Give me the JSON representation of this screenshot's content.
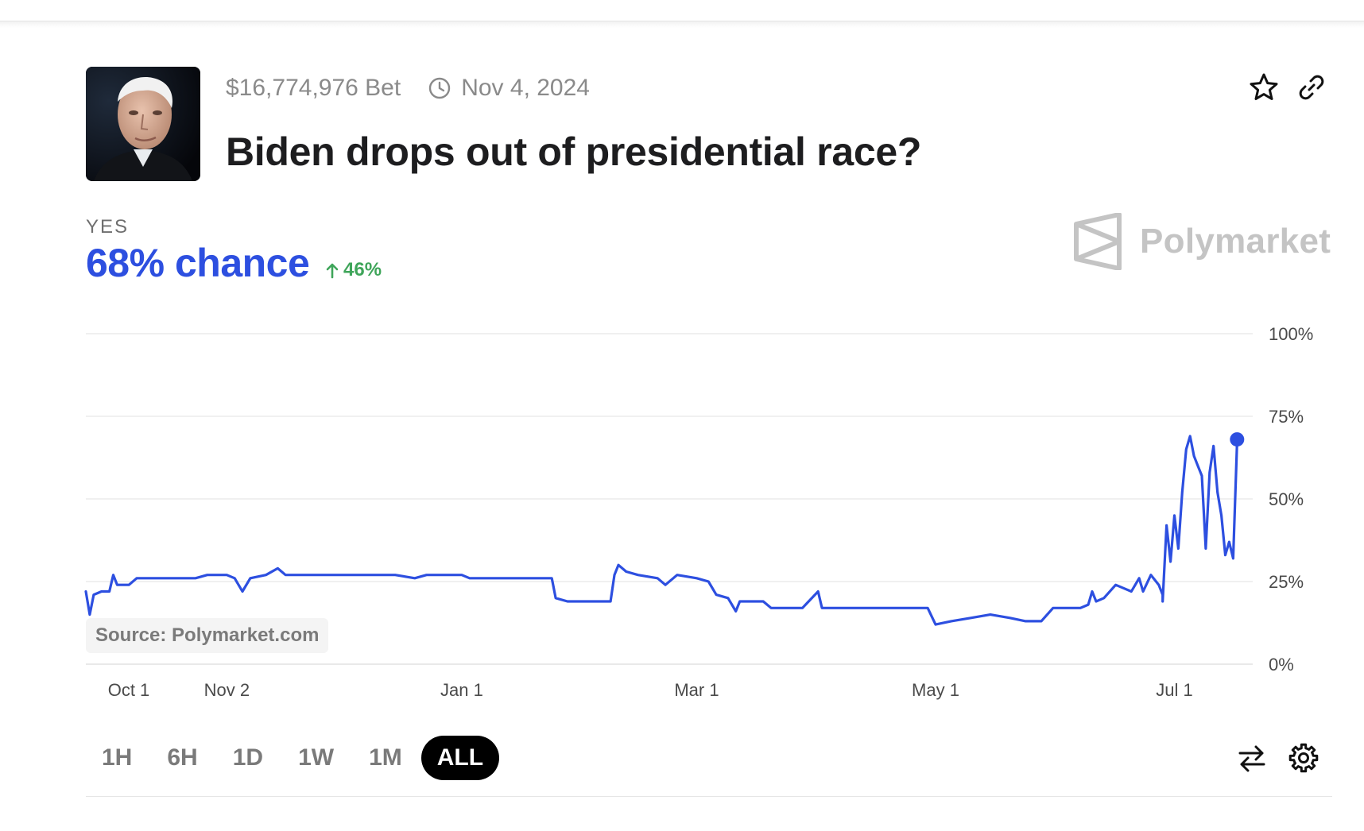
{
  "market": {
    "volume": "$16,774,976 Bet",
    "end_date": "Nov 4, 2024",
    "title": "Biden drops out of presidential race?"
  },
  "outcome": {
    "label": "YES",
    "chance": "68% chance",
    "change": "46%"
  },
  "brand": {
    "name": "Polymarket"
  },
  "source": "Source: Polymarket.com",
  "ranges": [
    "1H",
    "6H",
    "1D",
    "1W",
    "1M",
    "ALL"
  ],
  "active_range": "ALL",
  "icons": {
    "favorite": "star-icon",
    "share": "link-icon",
    "end_date": "clock-icon",
    "change": "arrow-up-icon",
    "swap": "swap-arrows-icon",
    "settings": "gear-icon"
  },
  "colors": {
    "line": "#2d4fe0",
    "positive": "#3fa55a",
    "brand_mark": "#c4c4c4"
  },
  "chart_data": {
    "type": "line",
    "ylim": [
      0,
      100
    ],
    "yticks": [
      0,
      25,
      50,
      75,
      100
    ],
    "ytick_labels": [
      "0%",
      "25%",
      "50%",
      "75%",
      "100%"
    ],
    "xlim": [
      "2023-09-27",
      "2024-07-21"
    ],
    "xticks": [
      {
        "x": "2023-10-01",
        "label": "Oct 1"
      },
      {
        "x": "2023-11-02",
        "label": "Nov 2"
      },
      {
        "x": "2024-01-01",
        "label": "Jan 1"
      },
      {
        "x": "2024-03-01",
        "label": "Mar 1"
      },
      {
        "x": "2024-05-01",
        "label": "May 1"
      },
      {
        "x": "2024-07-01",
        "label": "Jul 1"
      }
    ],
    "grid": true,
    "end_marker": true,
    "series": [
      {
        "points": [
          [
            "2023-09-27",
            22
          ],
          [
            "2023-09-28",
            15
          ],
          [
            "2023-09-29",
            21
          ],
          [
            "2023-10-01",
            22
          ],
          [
            "2023-10-03",
            22
          ],
          [
            "2023-10-04",
            27
          ],
          [
            "2023-10-05",
            24
          ],
          [
            "2023-10-08",
            24
          ],
          [
            "2023-10-10",
            26
          ],
          [
            "2023-10-20",
            26
          ],
          [
            "2023-10-25",
            26
          ],
          [
            "2023-10-28",
            27
          ],
          [
            "2023-11-02",
            27
          ],
          [
            "2023-11-04",
            26
          ],
          [
            "2023-11-06",
            22
          ],
          [
            "2023-11-08",
            26
          ],
          [
            "2023-11-12",
            27
          ],
          [
            "2023-11-15",
            29
          ],
          [
            "2023-11-17",
            27
          ],
          [
            "2023-11-25",
            27
          ],
          [
            "2023-12-05",
            27
          ],
          [
            "2023-12-15",
            27
          ],
          [
            "2023-12-20",
            26
          ],
          [
            "2023-12-23",
            27
          ],
          [
            "2024-01-01",
            27
          ],
          [
            "2024-01-03",
            26
          ],
          [
            "2024-01-06",
            26
          ],
          [
            "2024-01-12",
            26
          ],
          [
            "2024-01-18",
            26
          ],
          [
            "2024-01-24",
            26
          ],
          [
            "2024-01-25",
            20
          ],
          [
            "2024-01-28",
            19
          ],
          [
            "2024-02-05",
            19
          ],
          [
            "2024-02-08",
            19
          ],
          [
            "2024-02-09",
            27
          ],
          [
            "2024-02-10",
            30
          ],
          [
            "2024-02-12",
            28
          ],
          [
            "2024-02-15",
            27
          ],
          [
            "2024-02-20",
            26
          ],
          [
            "2024-02-22",
            24
          ],
          [
            "2024-02-25",
            27
          ],
          [
            "2024-03-01",
            26
          ],
          [
            "2024-03-04",
            25
          ],
          [
            "2024-03-06",
            21
          ],
          [
            "2024-03-09",
            20
          ],
          [
            "2024-03-11",
            16
          ],
          [
            "2024-03-12",
            19
          ],
          [
            "2024-03-18",
            19
          ],
          [
            "2024-03-20",
            17
          ],
          [
            "2024-03-28",
            17
          ],
          [
            "2024-04-01",
            22
          ],
          [
            "2024-04-02",
            17
          ],
          [
            "2024-04-10",
            17
          ],
          [
            "2024-04-20",
            17
          ],
          [
            "2024-04-27",
            17
          ],
          [
            "2024-04-29",
            17
          ],
          [
            "2024-05-01",
            12
          ],
          [
            "2024-05-05",
            13
          ],
          [
            "2024-05-10",
            14
          ],
          [
            "2024-05-15",
            15
          ],
          [
            "2024-05-20",
            14
          ],
          [
            "2024-05-24",
            13
          ],
          [
            "2024-05-28",
            13
          ],
          [
            "2024-05-31",
            17
          ],
          [
            "2024-06-04",
            17
          ],
          [
            "2024-06-07",
            17
          ],
          [
            "2024-06-09",
            18
          ],
          [
            "2024-06-10",
            22
          ],
          [
            "2024-06-11",
            19
          ],
          [
            "2024-06-13",
            20
          ],
          [
            "2024-06-16",
            24
          ],
          [
            "2024-06-18",
            23
          ],
          [
            "2024-06-20",
            22
          ],
          [
            "2024-06-22",
            26
          ],
          [
            "2024-06-23",
            22
          ],
          [
            "2024-06-25",
            27
          ],
          [
            "2024-06-27",
            24
          ],
          [
            "2024-06-28",
            21
          ],
          [
            "2024-06-28",
            19
          ],
          [
            "2024-06-29",
            42
          ],
          [
            "2024-06-30",
            31
          ],
          [
            "2024-07-01",
            45
          ],
          [
            "2024-07-02",
            35
          ],
          [
            "2024-07-03",
            52
          ],
          [
            "2024-07-04",
            65
          ],
          [
            "2024-07-05",
            69
          ],
          [
            "2024-07-06",
            63
          ],
          [
            "2024-07-07",
            60
          ],
          [
            "2024-07-08",
            57
          ],
          [
            "2024-07-09",
            35
          ],
          [
            "2024-07-10",
            58
          ],
          [
            "2024-07-11",
            66
          ],
          [
            "2024-07-12",
            52
          ],
          [
            "2024-07-13",
            45
          ],
          [
            "2024-07-14",
            33
          ],
          [
            "2024-07-15",
            37
          ],
          [
            "2024-07-16",
            32
          ],
          [
            "2024-07-17",
            67
          ],
          [
            "2024-07-17",
            68
          ]
        ]
      }
    ]
  }
}
